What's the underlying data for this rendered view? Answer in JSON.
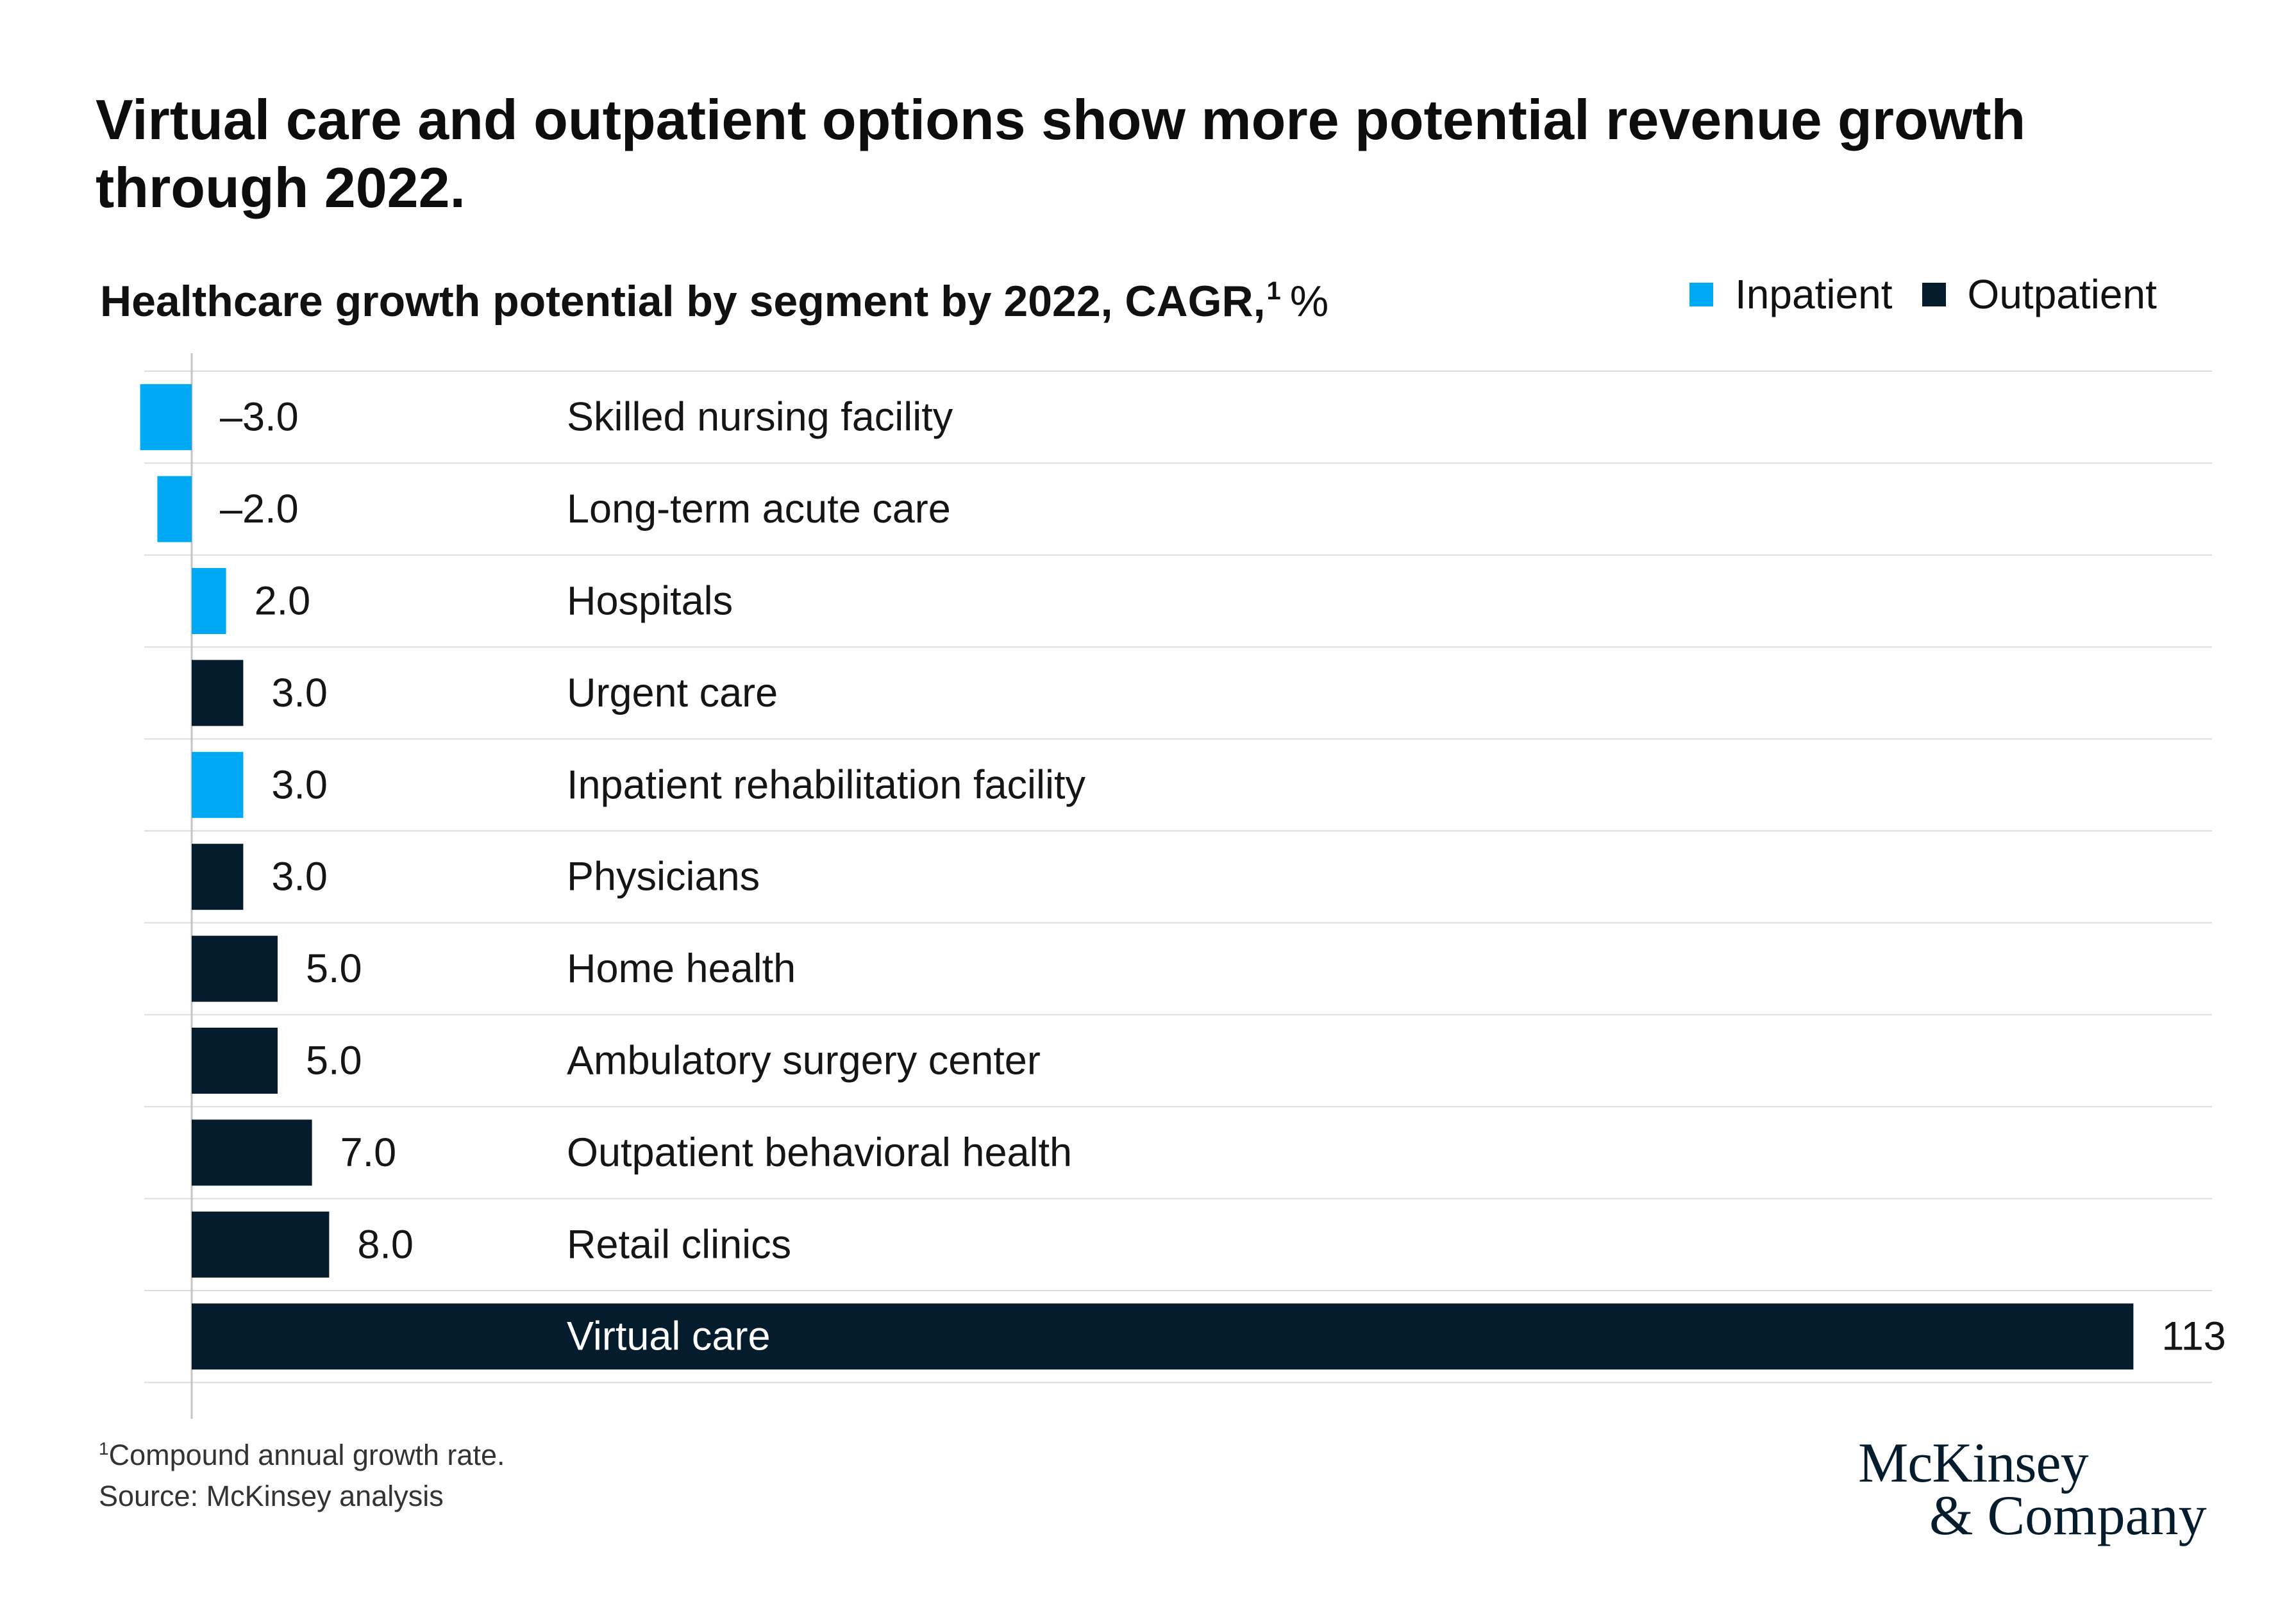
{
  "chart_data": {
    "type": "bar",
    "orientation": "horizontal",
    "title": "Virtual care and outpatient options show more potential revenue growth through 2022.",
    "subtitle": "Healthcare growth potential by segment by 2022, CAGR,",
    "subtitle_footnote_mark": "1",
    "unit": "%",
    "categories": [
      "Skilled nursing facility",
      "Long-term acute care",
      "Hospitals",
      "Urgent care",
      "Inpatient rehabilitation facility",
      "Physicians",
      "Home health",
      "Ambulatory surgery center",
      "Outpatient behavioral health",
      "Retail clinics",
      "Virtual care"
    ],
    "value_labels": [
      "–3.0",
      "–2.0",
      "2.0",
      "3.0",
      "3.0",
      "3.0",
      "5.0",
      "5.0",
      "7.0",
      "8.0",
      "113"
    ],
    "series": [
      {
        "name": "Inpatient",
        "color": "#00A9F4",
        "values": [
          -3.0,
          -2.0,
          2.0,
          null,
          3.0,
          null,
          null,
          null,
          null,
          null,
          null
        ]
      },
      {
        "name": "Outpatient",
        "color": "#051C2C",
        "values": [
          null,
          null,
          null,
          3.0,
          null,
          3.0,
          5.0,
          5.0,
          7.0,
          8.0,
          113
        ]
      }
    ],
    "legend_position": "top-right",
    "grid": true
  },
  "footnote": {
    "mark": "1",
    "text": "Compound annual growth rate."
  },
  "source": "Source: McKinsey analysis",
  "logo": {
    "line1": "McKinsey",
    "line2": "& Company"
  }
}
